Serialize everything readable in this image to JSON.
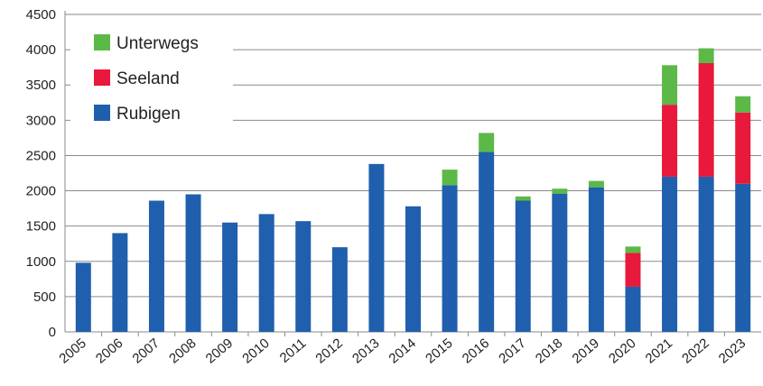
{
  "chart_data": {
    "type": "bar",
    "stacked": true,
    "categories": [
      "2005",
      "2006",
      "2007",
      "2008",
      "2009",
      "2010",
      "2011",
      "2012",
      "2013",
      "2014",
      "2015",
      "2016",
      "2017",
      "2018",
      "2019",
      "2020",
      "2021",
      "2022",
      "2023"
    ],
    "series": [
      {
        "name": "Rubigen",
        "color": "#1f5fad",
        "values": [
          980,
          1400,
          1860,
          1950,
          1550,
          1670,
          1570,
          1200,
          2380,
          1780,
          2080,
          2550,
          1860,
          1960,
          2050,
          640,
          2200,
          2200,
          2100
        ]
      },
      {
        "name": "Seeland",
        "color": "#e8193c",
        "values": [
          0,
          0,
          0,
          0,
          0,
          0,
          0,
          0,
          0,
          0,
          0,
          0,
          0,
          0,
          0,
          480,
          1020,
          1610,
          1010
        ]
      },
      {
        "name": "Unterwegs",
        "color": "#5cb947",
        "values": [
          0,
          0,
          0,
          0,
          0,
          0,
          0,
          0,
          0,
          0,
          220,
          270,
          60,
          70,
          90,
          90,
          560,
          210,
          230
        ]
      }
    ],
    "legend_order": [
      "Unterwegs",
      "Seeland",
      "Rubigen"
    ],
    "yticks": [
      "0",
      "500",
      "1000",
      "1500",
      "2000",
      "2500",
      "3000",
      "3500",
      "4000",
      "4500"
    ],
    "ylim": [
      0,
      4500
    ],
    "grid": true,
    "legend_position": "top-left",
    "title": "",
    "xlabel": "",
    "ylabel": ""
  }
}
